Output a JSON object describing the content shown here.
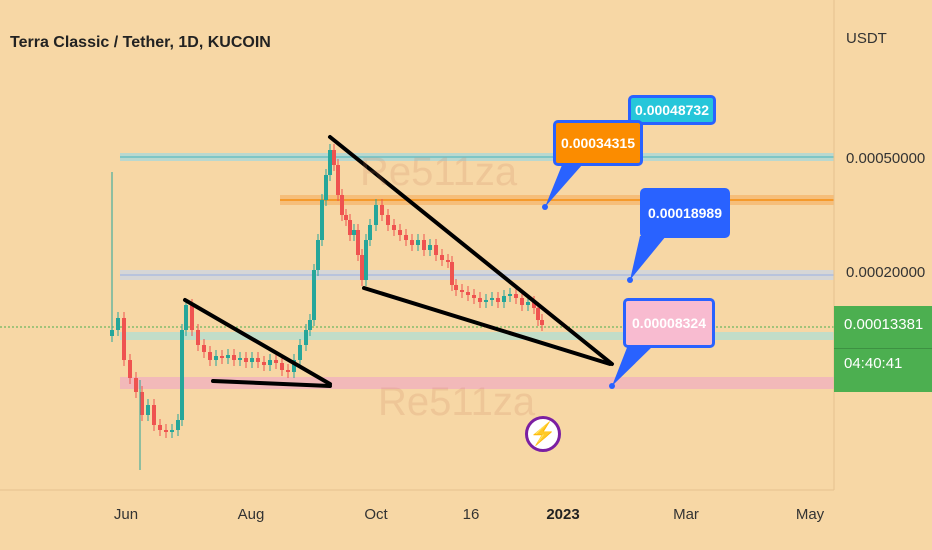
{
  "header": {
    "title": "Terra Classic / Tether, 1D, KUCOIN"
  },
  "axis": {
    "unit": "USDT",
    "y_ticks": [
      "0.00050000",
      "0.00020000"
    ],
    "x_ticks": [
      "Jun",
      "Aug",
      "Oct",
      "16",
      "2023",
      "Mar",
      "May"
    ]
  },
  "price_tag": {
    "price": "0.00013381",
    "countdown": "04:40:41",
    "color": "#4caf50"
  },
  "annotations": [
    {
      "text": "0.00048732",
      "fill": "#26c6da",
      "text_color": "#ffffff"
    },
    {
      "text": "0.00034315",
      "fill": "#fb8c00",
      "text_color": "#ffffff"
    },
    {
      "text": "0.00018989",
      "fill": "#2962ff",
      "text_color": "#ffffff"
    },
    {
      "text": "0.00008324",
      "fill": "#f8bbd0",
      "text_color": "#ffffff"
    }
  ],
  "watermark": "Re511za",
  "icons": {
    "logo": "lightning-bolt-icon"
  },
  "colors": {
    "up_candle": "#26a69a",
    "down_candle": "#ef5350",
    "background": "#f7d7a5"
  },
  "chart_data": {
    "type": "candlestick",
    "title": "Terra Classic / Tether, 1D, KUCOIN",
    "ylabel": "USDT",
    "y_scale": "log",
    "x_labels": [
      "Jun",
      "Aug",
      "Oct",
      "16",
      "2023",
      "Mar",
      "May"
    ],
    "horizontal_levels": [
      0.00048732,
      0.00034315,
      0.00018989,
      8.324e-05
    ],
    "last_price": 0.00013381
  }
}
